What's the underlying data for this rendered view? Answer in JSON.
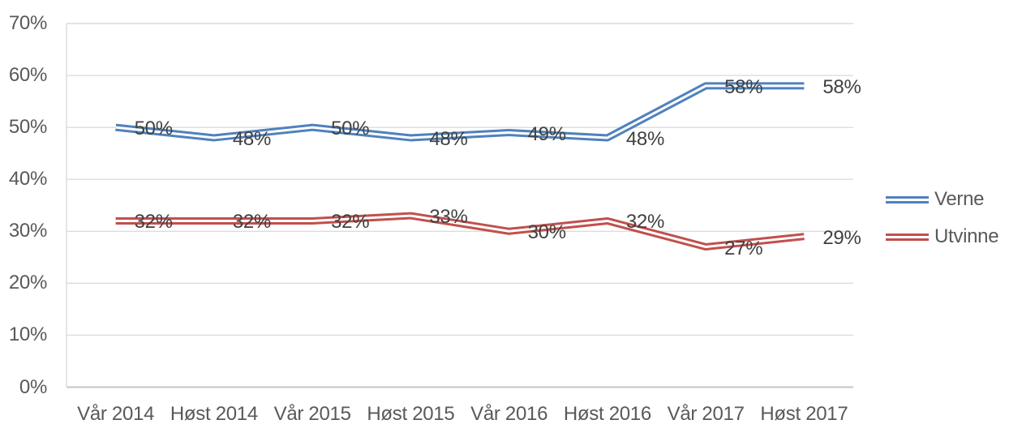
{
  "chart_data": {
    "type": "line",
    "categories": [
      "Vår 2014",
      "Høst 2014",
      "Vår 2015",
      "Høst 2015",
      "Vår 2016",
      "Høst 2016",
      "Vår 2017",
      "Høst 2017"
    ],
    "series": [
      {
        "name": "Verne",
        "color": "#4F81BD",
        "values": [
          50,
          48,
          50,
          48,
          49,
          48,
          58,
          58
        ]
      },
      {
        "name": "Utvinne",
        "color": "#C0504D",
        "values": [
          32,
          32,
          32,
          33,
          30,
          32,
          27,
          29
        ]
      }
    ],
    "data_labels": [
      [
        "50%",
        "48%",
        "50%",
        "48%",
        "49%",
        "48%",
        "58%",
        "58%"
      ],
      [
        "32%",
        "32%",
        "32%",
        "33%",
        "30%",
        "32%",
        "27%",
        "29%"
      ]
    ],
    "title": "",
    "xlabel": "",
    "ylabel": "",
    "ylim": [
      0,
      70
    ],
    "ytick_step": 10,
    "ytick_labels": [
      "0%",
      "10%",
      "20%",
      "30%",
      "40%",
      "50%",
      "60%",
      "70%"
    ],
    "grid": true,
    "legend_position": "right",
    "line_style": "double"
  },
  "colors": {
    "gridline": "#DCDCDC",
    "axis_line": "#C6C6C6",
    "plot_border": "#DCDCDC",
    "tick_label": "#595959",
    "data_label": "#404040",
    "legend_label": "#595959",
    "background": "#FFFFFF",
    "line_gap_fill": "#FFFFFF"
  }
}
